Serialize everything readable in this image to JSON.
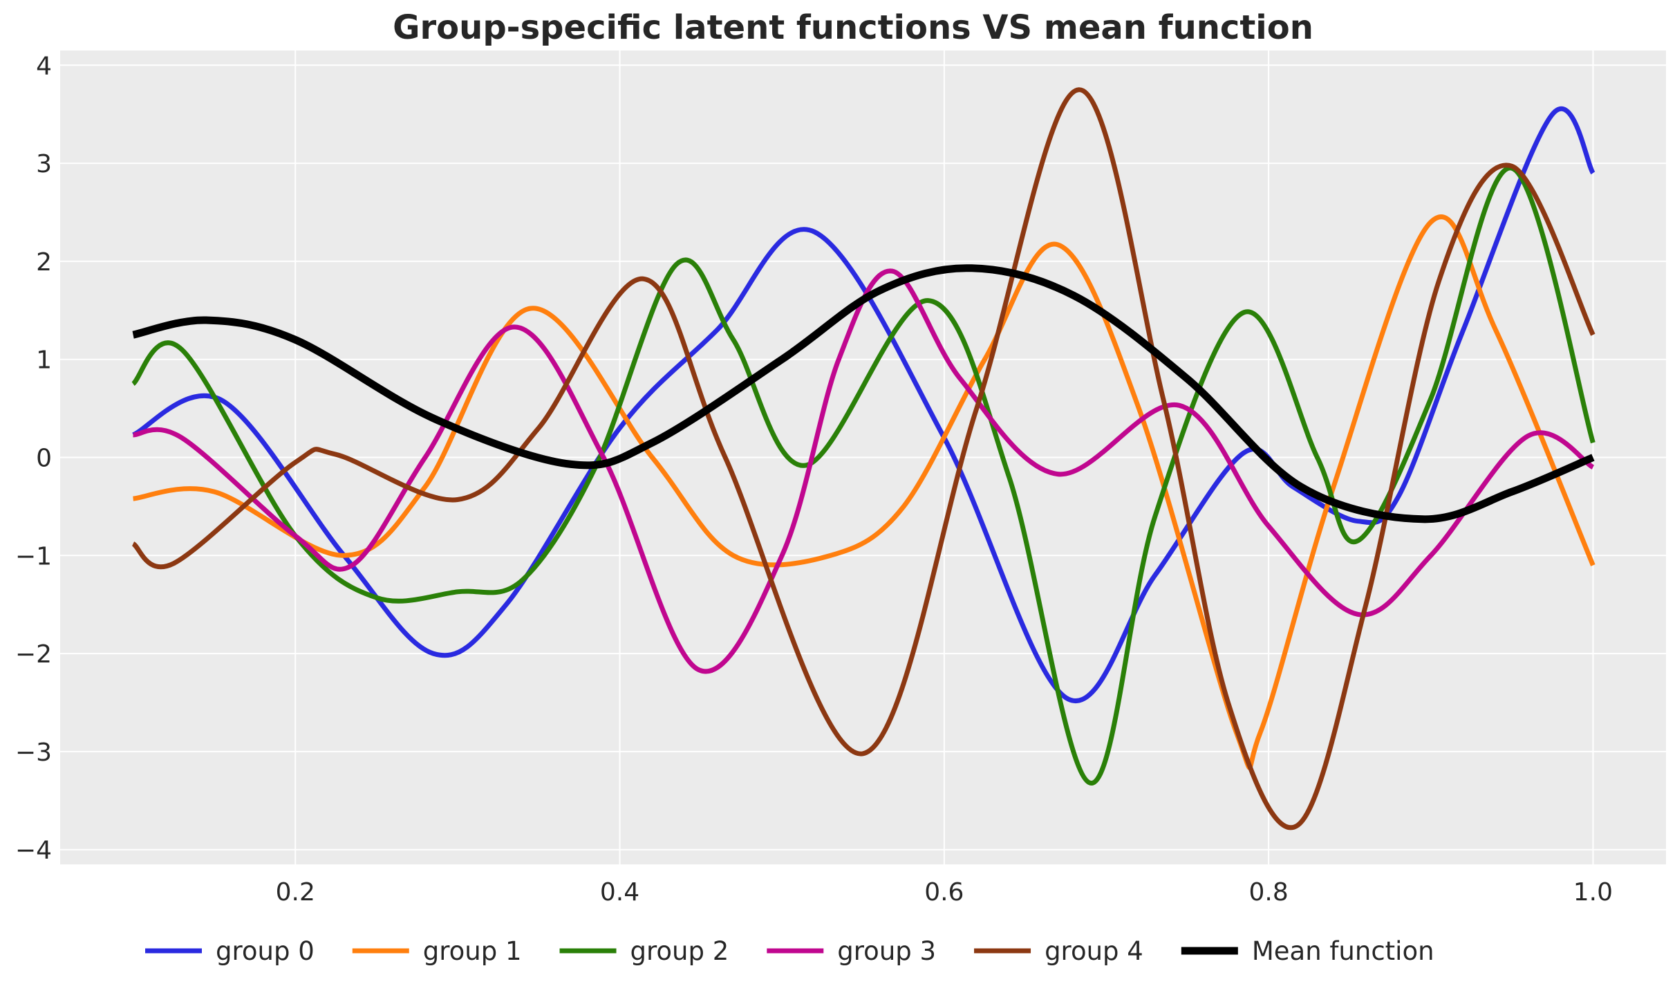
{
  "chart_data": {
    "type": "line",
    "title": "Group-specific latent functions VS mean function",
    "xlabel": "",
    "ylabel": "",
    "xlim": [
      0.055,
      1.045
    ],
    "ylim": [
      -4.15,
      4.15
    ],
    "grid": true,
    "legend_position": "bottom",
    "x_ticks": [
      0.2,
      0.4,
      0.6,
      0.8,
      1.0
    ],
    "x_tick_labels": [
      "0.2",
      "0.4",
      "0.6",
      "0.8",
      "1.0"
    ],
    "y_ticks": [
      -4,
      -3,
      -2,
      -1,
      0,
      1,
      2,
      3,
      4
    ],
    "y_tick_labels": [
      "−4",
      "−3",
      "−2",
      "−1",
      "0",
      "1",
      "2",
      "3",
      "4"
    ],
    "series": [
      {
        "name": "group 0",
        "color": "#2a2ae0",
        "line_width": 7,
        "x": [
          0.1,
          0.155,
          0.23,
          0.285,
          0.33,
          0.4,
          0.46,
          0.52,
          0.6,
          0.675,
          0.73,
          0.785,
          0.815,
          0.855,
          0.88,
          0.92,
          0.975,
          1.0
        ],
        "y": [
          0.23,
          0.58,
          -1.0,
          -2.0,
          -1.5,
          0.3,
          1.3,
          2.3,
          0.2,
          -2.45,
          -1.2,
          0.05,
          -0.3,
          -0.65,
          -0.4,
          1.3,
          3.5,
          2.9
        ]
      },
      {
        "name": "group 1",
        "color": "#ff7f0e",
        "line_width": 7,
        "x": [
          0.1,
          0.15,
          0.23,
          0.28,
          0.345,
          0.42,
          0.47,
          0.53,
          0.575,
          0.625,
          0.67,
          0.72,
          0.78,
          0.795,
          0.84,
          0.9,
          0.94,
          1.0
        ],
        "y": [
          -0.42,
          -0.35,
          -1.0,
          -0.3,
          1.52,
          0.0,
          -1.0,
          -1.0,
          -0.5,
          1.0,
          2.17,
          0.5,
          -2.8,
          -2.8,
          -0.3,
          2.4,
          1.3,
          -1.1
        ]
      },
      {
        "name": "group 2",
        "color": "#2a8008",
        "line_width": 7,
        "x": [
          0.1,
          0.13,
          0.2,
          0.25,
          0.3,
          0.34,
          0.385,
          0.435,
          0.47,
          0.515,
          0.59,
          0.64,
          0.69,
          0.73,
          0.785,
          0.83,
          0.855,
          0.9,
          0.95,
          1.0
        ],
        "y": [
          0.75,
          1.1,
          -0.8,
          -1.43,
          -1.37,
          -1.25,
          -0.1,
          1.97,
          1.2,
          -0.08,
          1.6,
          -0.2,
          -3.32,
          -0.6,
          1.48,
          0.0,
          -0.85,
          0.6,
          2.95,
          0.15
        ]
      },
      {
        "name": "group 3",
        "color": "#c0078f",
        "line_width": 7,
        "x": [
          0.1,
          0.13,
          0.2,
          0.235,
          0.28,
          0.335,
          0.39,
          0.448,
          0.5,
          0.535,
          0.568,
          0.61,
          0.67,
          0.745,
          0.8,
          0.855,
          0.9,
          0.96,
          1.0
        ],
        "y": [
          0.23,
          0.2,
          -0.8,
          -1.1,
          0.0,
          1.33,
          0.0,
          -2.16,
          -1.0,
          1.0,
          1.9,
          0.8,
          -0.17,
          0.53,
          -0.7,
          -1.6,
          -1.0,
          0.22,
          -0.1
        ]
      },
      {
        "name": "group 4",
        "color": "#8c3812",
        "line_width": 7,
        "x": [
          0.1,
          0.125,
          0.2,
          0.225,
          0.3,
          0.35,
          0.415,
          0.465,
          0.55,
          0.62,
          0.683,
          0.735,
          0.775,
          0.818,
          0.86,
          0.905,
          0.95,
          1.0
        ],
        "y": [
          -0.88,
          -1.08,
          -0.05,
          0.03,
          -0.43,
          0.3,
          1.82,
          0.0,
          -3.02,
          0.5,
          3.75,
          0.6,
          -2.5,
          -3.75,
          -1.5,
          1.8,
          2.97,
          1.25
        ]
      },
      {
        "name": "Mean function",
        "color": "#000000",
        "line_width": 11,
        "x": [
          0.1,
          0.145,
          0.2,
          0.285,
          0.37,
          0.42,
          0.5,
          0.56,
          0.617,
          0.68,
          0.75,
          0.82,
          0.895,
          0.95,
          1.0
        ],
        "y": [
          1.25,
          1.4,
          1.2,
          0.4,
          -0.07,
          0.15,
          1.0,
          1.7,
          1.93,
          1.65,
          0.8,
          -0.3,
          -0.63,
          -0.35,
          0.0
        ]
      }
    ]
  }
}
